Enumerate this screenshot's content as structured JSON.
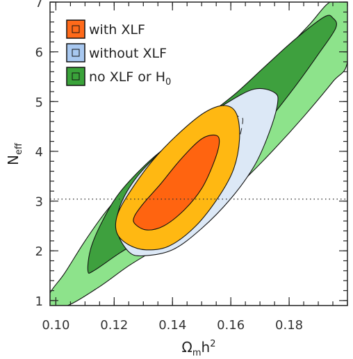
{
  "chart_data": {
    "type": "contour",
    "xlabel": "Ωmh2",
    "xlabel_parts": {
      "base": "Ω",
      "sub": "m",
      "mid": "h",
      "sup": "2"
    },
    "ylabel_parts": {
      "base": "N",
      "sub": "eff"
    },
    "xlim": [
      0.098,
      0.2
    ],
    "ylim": [
      0.9,
      7.0
    ],
    "xticks": [
      "0.10",
      "0.12",
      "0.14",
      "0.16",
      "0.18"
    ],
    "yticks": [
      "1",
      "2",
      "3",
      "4",
      "5",
      "6",
      "7"
    ],
    "reference_line": {
      "y": 3.04,
      "style": "dotted"
    },
    "legend": {
      "placement": "top-left",
      "entries": [
        {
          "label_parts": {
            "base": "with XLF"
          },
          "color": "#ff6a1a"
        },
        {
          "label_parts": {
            "base": "without XLF"
          },
          "color": "#a8c8f0"
        },
        {
          "label_parts": {
            "base": "no XLF or H",
            "sub": "0"
          },
          "color": "#3aa33a"
        }
      ]
    },
    "series": [
      {
        "name": "no XLF or H0",
        "regions": [
          {
            "level": "95%",
            "fill": "#8de38b",
            "points": [
              [
                0.098,
                0.9
              ],
              [
                0.104,
                0.9
              ],
              [
                0.115,
                1.28
              ],
              [
                0.125,
                1.7
              ],
              [
                0.135,
                2.06
              ],
              [
                0.145,
                2.45
              ],
              [
                0.155,
                2.9
              ],
              [
                0.165,
                3.45
              ],
              [
                0.175,
                4.05
              ],
              [
                0.185,
                4.7
              ],
              [
                0.195,
                5.4
              ],
              [
                0.2,
                5.8
              ],
              [
                0.2,
                7.0
              ],
              [
                0.194,
                7.0
              ],
              [
                0.187,
                6.55
              ],
              [
                0.178,
                6.0
              ],
              [
                0.168,
                5.45
              ],
              [
                0.158,
                4.9
              ],
              [
                0.148,
                4.45
              ],
              [
                0.138,
                4.0
              ],
              [
                0.128,
                3.5
              ],
              [
                0.118,
                2.85
              ],
              [
                0.11,
                2.2
              ],
              [
                0.103,
                1.55
              ],
              [
                0.098,
                1.15
              ]
            ]
          },
          {
            "level": "68%",
            "fill": "#3ea03e",
            "points": [
              [
                0.111,
                1.6
              ],
              [
                0.113,
                1.6
              ],
              [
                0.122,
                1.96
              ],
              [
                0.132,
                2.32
              ],
              [
                0.142,
                2.72
              ],
              [
                0.152,
                3.22
              ],
              [
                0.162,
                3.85
              ],
              [
                0.172,
                4.55
              ],
              [
                0.182,
                5.3
              ],
              [
                0.19,
                5.95
              ],
              [
                0.196,
                6.48
              ],
              [
                0.195,
                6.68
              ],
              [
                0.192,
                6.7
              ],
              [
                0.182,
                6.25
              ],
              [
                0.172,
                5.72
              ],
              [
                0.162,
                5.18
              ],
              [
                0.152,
                4.72
              ],
              [
                0.142,
                4.28
              ],
              [
                0.132,
                3.8
              ],
              [
                0.122,
                3.18
              ],
              [
                0.116,
                2.6
              ],
              [
                0.112,
                2.05
              ]
            ]
          }
        ]
      },
      {
        "name": "without XLF",
        "regions": [
          {
            "level": "95%",
            "fill": "#dce8f6",
            "points": [
              [
                0.125,
                1.98
              ],
              [
                0.13,
                1.9
              ],
              [
                0.14,
                2.02
              ],
              [
                0.15,
                2.45
              ],
              [
                0.16,
                3.05
              ],
              [
                0.168,
                3.7
              ],
              [
                0.173,
                4.35
              ],
              [
                0.176,
                4.95
              ],
              [
                0.175,
                5.18
              ],
              [
                0.168,
                5.25
              ],
              [
                0.158,
                4.95
              ],
              [
                0.148,
                4.55
              ],
              [
                0.138,
                4.1
              ],
              [
                0.128,
                3.5
              ],
              [
                0.122,
                2.9
              ],
              [
                0.121,
                2.4
              ]
            ]
          },
          {
            "level": "68%",
            "dashed": true,
            "points": [
              [
                0.136,
                2.55
              ],
              [
                0.145,
                2.8
              ],
              [
                0.154,
                3.3
              ],
              [
                0.161,
                3.95
              ],
              [
                0.164,
                4.55
              ],
              [
                0.163,
                4.7
              ],
              [
                0.157,
                4.65
              ],
              [
                0.148,
                4.25
              ],
              [
                0.139,
                3.7
              ],
              [
                0.132,
                3.1
              ]
            ]
          }
        ]
      },
      {
        "name": "with XLF",
        "regions": [
          {
            "level": "95%",
            "fill": "#ffb812",
            "points": [
              [
                0.121,
                2.35
              ],
              [
                0.125,
                2.12
              ],
              [
                0.131,
                2.02
              ],
              [
                0.139,
                2.1
              ],
              [
                0.148,
                2.5
              ],
              [
                0.156,
                3.1
              ],
              [
                0.161,
                3.65
              ],
              [
                0.163,
                4.25
              ],
              [
                0.162,
                4.75
              ],
              [
                0.158,
                4.92
              ],
              [
                0.151,
                4.78
              ],
              [
                0.142,
                4.35
              ],
              [
                0.133,
                3.8
              ],
              [
                0.125,
                3.15
              ],
              [
                0.121,
                2.7
              ]
            ]
          },
          {
            "level": "68%",
            "fill": "#ff6410",
            "points": [
              [
                0.127,
                2.55
              ],
              [
                0.131,
                2.42
              ],
              [
                0.137,
                2.5
              ],
              [
                0.144,
                2.82
              ],
              [
                0.15,
                3.25
              ],
              [
                0.154,
                3.75
              ],
              [
                0.156,
                4.15
              ],
              [
                0.155,
                4.32
              ],
              [
                0.15,
                4.25
              ],
              [
                0.143,
                3.85
              ],
              [
                0.136,
                3.35
              ],
              [
                0.13,
                2.95
              ],
              [
                0.127,
                2.7
              ]
            ]
          }
        ]
      }
    ]
  }
}
